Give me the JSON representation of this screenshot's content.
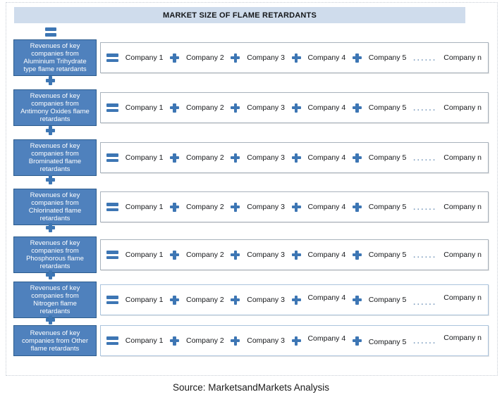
{
  "header": {
    "title": "MARKET SIZE OF FLAME RETARDANTS"
  },
  "diagram": {
    "rows": [
      {
        "label": "Revenues of key\ncompanies from\nAluminium Trihydrate\ntype flame retardants"
      },
      {
        "label": "Revenues of key\ncompanies from\nAntimony Oxides flame\nretardants"
      },
      {
        "label": "Revenues of key\ncompanies from\nBrominated flame\nretardants"
      },
      {
        "label": "Revenues of key\ncompanies from\nChlorinated flame\nretardants"
      },
      {
        "label": "Revenues of key\ncompanies from\nPhosphorous flame\nretardants"
      },
      {
        "label": "Revenues of key\ncompanies from\nNitrogen flame\nretardants"
      },
      {
        "label": "Revenues of key\ncompanies from Other\nflame retardants"
      }
    ],
    "companies": {
      "items": [
        "Company 1",
        "Company 2",
        "Company 3",
        "Company 4",
        "Company 5"
      ],
      "last": "Company n",
      "ellipsis": "......"
    }
  },
  "footer": {
    "source": "Source: MarketsandMarkets Analysis"
  },
  "colors": {
    "accent_blue": "#4f81bd",
    "accent_border": "#2d5d8e",
    "header_bg": "#cfdcec",
    "icon_blue": "#3d76b4"
  }
}
